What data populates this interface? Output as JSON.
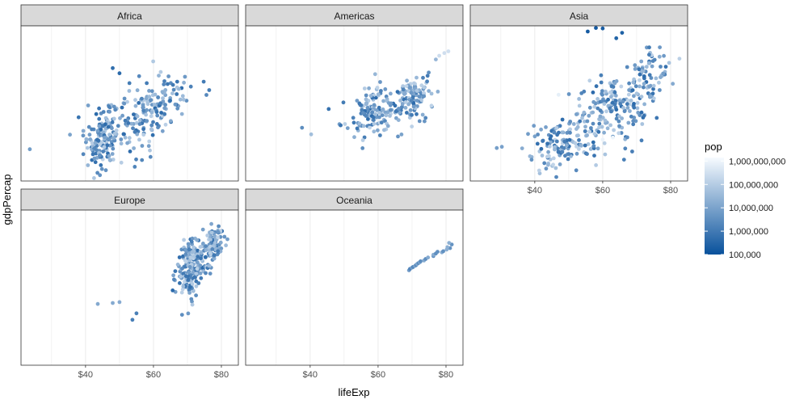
{
  "chart_data": {
    "type": "scatter",
    "facet_by": "continent",
    "xlabel": "lifeExp",
    "ylabel": "gdpPercap",
    "x_tick_labels": [
      "$40",
      "$60",
      "$80"
    ],
    "x_ticks": [
      40,
      60,
      80
    ],
    "xlim": [
      21,
      85
    ],
    "y_scale": "log",
    "ylim": [
      200,
      120000
    ],
    "y_tick_labels_visible": false,
    "grid": "vertical only",
    "color": {
      "variable": "pop",
      "scale": "log",
      "low": "#08519c",
      "high": "#f7fbff"
    },
    "legend": {
      "title": "pop",
      "position": "right",
      "labels": [
        "1,000,000,000",
        "100,000,000",
        "10,000,000",
        "1,000,000",
        "100,000"
      ],
      "values": [
        1000000000,
        100000000,
        10000000,
        1000000,
        100000
      ]
    },
    "facets": [
      {
        "name": "Africa",
        "row": 0,
        "col": 0,
        "clouds": [
          {
            "lifeExp": [
              45,
              5
            ],
            "gdp": [
              1200,
              2.0
            ],
            "n": 160
          },
          {
            "lifeExp": [
              56,
              7
            ],
            "gdp": [
              2800,
              2.3
            ],
            "n": 110
          },
          {
            "lifeExp": [
              63,
              7
            ],
            "gdp": [
              5000,
              2.0
            ],
            "n": 60
          }
        ],
        "points": [
          {
            "lifeExp": 23.6,
            "gdp": 740,
            "pop": 7000000
          },
          {
            "lifeExp": 74.8,
            "gdp": 12000,
            "pop": 1000000
          },
          {
            "lifeExp": 76.4,
            "gdp": 8500,
            "pop": 1200000
          },
          {
            "lifeExp": 48,
            "gdp": 21000,
            "pop": 500000
          },
          {
            "lifeExp": 50,
            "gdp": 17000,
            "pop": 400000
          },
          {
            "lifeExp": 43.5,
            "gdp": 280,
            "pop": 2500000
          },
          {
            "lifeExp": 67,
            "gdp": 12000,
            "pop": 800000
          },
          {
            "lifeExp": 71,
            "gdp": 9800,
            "pop": 1500000
          }
        ]
      },
      {
        "name": "Americas",
        "row": 0,
        "col": 1,
        "clouds": [
          {
            "lifeExp": [
              58,
              8
            ],
            "gdp": [
              3500,
              1.7
            ],
            "n": 140
          },
          {
            "lifeExp": [
              70,
              5
            ],
            "gdp": [
              6500,
              1.6
            ],
            "n": 110
          }
        ],
        "points": [
          {
            "lifeExp": 37.6,
            "gdp": 1800,
            "pop": 3000000
          },
          {
            "lifeExp": 78,
            "gdp": 35000,
            "pop": 250000000
          },
          {
            "lifeExp": 79.5,
            "gdp": 39000,
            "pop": 280000000
          },
          {
            "lifeExp": 80.7,
            "gdp": 42000,
            "pop": 300000000
          },
          {
            "lifeExp": 77,
            "gdp": 30000,
            "pop": 30000000
          }
        ]
      },
      {
        "name": "Asia",
        "row": 0,
        "col": 2,
        "clouds": [
          {
            "lifeExp": [
              48,
              9
            ],
            "gdp": [
              900,
              1.8
            ],
            "n": 140
          },
          {
            "lifeExp": [
              63,
              9
            ],
            "gdp": [
              3500,
              2.3
            ],
            "n": 160
          },
          {
            "lifeExp": [
              73,
              6
            ],
            "gdp": [
              14000,
              2.1
            ],
            "n": 80
          }
        ],
        "points": [
          {
            "lifeExp": 28.8,
            "gdp": 780,
            "pop": 8000000
          },
          {
            "lifeExp": 30.3,
            "gdp": 820,
            "pop": 9000000
          },
          {
            "lifeExp": 58,
            "gdp": 110000,
            "pop": 160000
          },
          {
            "lifeExp": 60,
            "gdp": 108000,
            "pop": 200000
          },
          {
            "lifeExp": 55.6,
            "gdp": 95000,
            "pop": 180000
          },
          {
            "lifeExp": 64,
            "gdp": 72000,
            "pop": 300000
          },
          {
            "lifeExp": 65.7,
            "gdp": 90000,
            "pop": 250000
          },
          {
            "lifeExp": 47,
            "gdp": 7000,
            "pop": 700000000
          },
          {
            "lifeExp": 60,
            "gdp": 1100,
            "pop": 900000000
          },
          {
            "lifeExp": 63,
            "gdp": 1200,
            "pop": 1000000000
          },
          {
            "lifeExp": 82.6,
            "gdp": 31000,
            "pop": 127000000
          }
        ]
      },
      {
        "name": "Europe",
        "row": 1,
        "col": 0,
        "clouds": [
          {
            "lifeExp": [
              71,
              4
            ],
            "gdp": [
              11000,
              1.9
            ],
            "n": 200
          },
          {
            "lifeExp": [
              77,
              3
            ],
            "gdp": [
              25000,
              1.5
            ],
            "n": 90
          }
        ],
        "points": [
          {
            "lifeExp": 43.6,
            "gdp": 2500,
            "pop": 14000000
          },
          {
            "lifeExp": 48,
            "gdp": 2600,
            "pop": 15000000
          },
          {
            "lifeExp": 50,
            "gdp": 2700,
            "pop": 16000000
          },
          {
            "lifeExp": 53.8,
            "gdp": 1300,
            "pop": 1300000
          },
          {
            "lifeExp": 55,
            "gdp": 1700,
            "pop": 1400000
          },
          {
            "lifeExp": 79,
            "gdp": 49000,
            "pop": 4600000
          },
          {
            "lifeExp": 81.8,
            "gdp": 36000,
            "pop": 7500000
          },
          {
            "lifeExp": 80.9,
            "gdp": 40000,
            "pop": 4600000
          }
        ]
      },
      {
        "name": "Oceania",
        "row": 1,
        "col": 1,
        "clouds": [],
        "points": [
          {
            "lifeExp": 69.1,
            "gdp": 10000,
            "pop": 8700000
          },
          {
            "lifeExp": 69.4,
            "gdp": 10600,
            "pop": 1900000
          },
          {
            "lifeExp": 70.0,
            "gdp": 11200,
            "pop": 9700000
          },
          {
            "lifeExp": 70.3,
            "gdp": 11500,
            "pop": 2200000
          },
          {
            "lifeExp": 70.9,
            "gdp": 12000,
            "pop": 11000000
          },
          {
            "lifeExp": 71.2,
            "gdp": 12500,
            "pop": 2500000
          },
          {
            "lifeExp": 71.5,
            "gdp": 13000,
            "pop": 12400000
          },
          {
            "lifeExp": 71.9,
            "gdp": 13500,
            "pop": 2700000
          },
          {
            "lifeExp": 72.3,
            "gdp": 14000,
            "pop": 13200000
          },
          {
            "lifeExp": 72.5,
            "gdp": 14500,
            "pop": 2900000
          },
          {
            "lifeExp": 73.5,
            "gdp": 15000,
            "pop": 14000000
          },
          {
            "lifeExp": 74.0,
            "gdp": 16000,
            "pop": 3100000
          },
          {
            "lifeExp": 74.7,
            "gdp": 17000,
            "pop": 14900000
          },
          {
            "lifeExp": 76.3,
            "gdp": 18000,
            "pop": 3300000
          },
          {
            "lifeExp": 76.3,
            "gdp": 19000,
            "pop": 15500000
          },
          {
            "lifeExp": 77.0,
            "gdp": 20000,
            "pop": 3400000
          },
          {
            "lifeExp": 78.8,
            "gdp": 21000,
            "pop": 17000000
          },
          {
            "lifeExp": 79.2,
            "gdp": 22000,
            "pop": 3600000
          },
          {
            "lifeExp": 80.2,
            "gdp": 23500,
            "pop": 18500000
          },
          {
            "lifeExp": 81.2,
            "gdp": 25000,
            "pop": 3900000
          },
          {
            "lifeExp": 80.4,
            "gdp": 26000,
            "pop": 19500000
          },
          {
            "lifeExp": 81.7,
            "gdp": 29000,
            "pop": 4100000
          },
          {
            "lifeExp": 80.9,
            "gdp": 31000,
            "pop": 20400000
          },
          {
            "lifeExp": 77.5,
            "gdp": 21500,
            "pop": 3500000
          }
        ]
      }
    ]
  }
}
